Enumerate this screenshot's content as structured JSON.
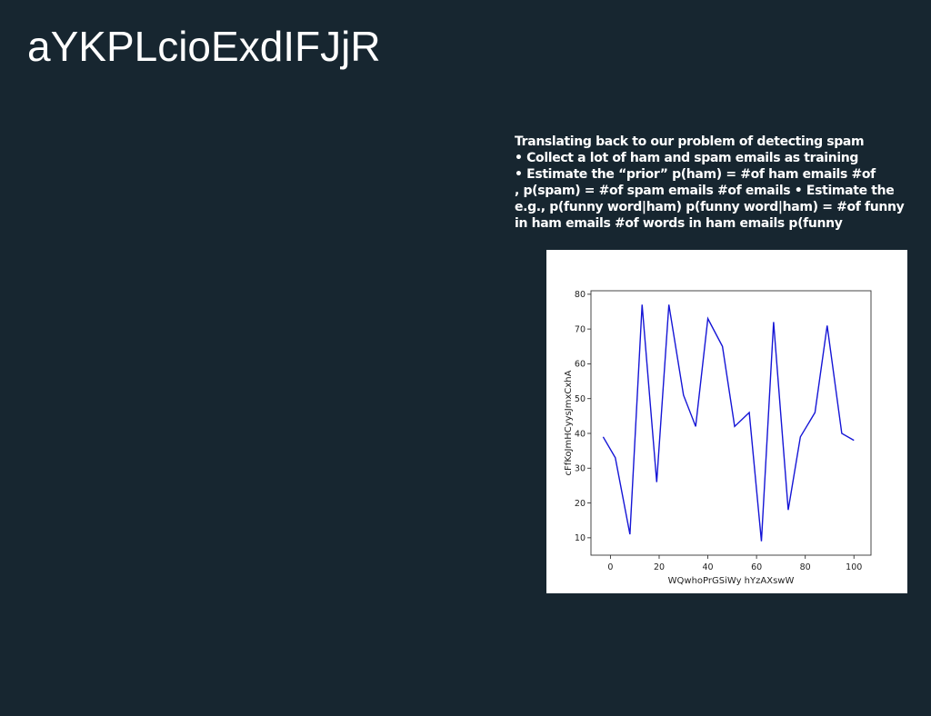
{
  "slide": {
    "title": "aYKPLcioExdIFJjR",
    "body_lines": [
      "Translating back to our problem of detecting spam",
      "• Collect a lot of ham and spam emails as training",
      "• Estimate the “prior” p(ham) = #of ham emails #of",
      ", p(spam) = #of spam emails #of emails • Estimate the",
      "e.g., p(funny word|ham) p(funny word|ham) = #of funny",
      "in ham emails #of words in ham emails p(funny"
    ]
  },
  "chart_data": {
    "type": "line",
    "x": [
      -3,
      2,
      8,
      13,
      19,
      24,
      30,
      35,
      40,
      46,
      51,
      57,
      62,
      67,
      73,
      78,
      84,
      89,
      95,
      100
    ],
    "series": [
      {
        "values": [
          39,
          33,
          11,
          77,
          26,
          77,
          51,
          42,
          73,
          65,
          42,
          46,
          9,
          72,
          18,
          39,
          46,
          71,
          40,
          38
        ]
      }
    ],
    "xlabel": "WQwhoPrGSiWy hYzAXswW",
    "ylabel": "cFfKoJmHCyysJmxCxhA",
    "xlim": [
      -8,
      107
    ],
    "ylim": [
      5,
      81
    ],
    "xticks": [
      0,
      20,
      40,
      60,
      80,
      100
    ],
    "yticks": [
      10,
      20,
      30,
      40,
      50,
      60,
      70,
      80
    ],
    "line_color": "#1515d6",
    "grid": false,
    "legend": false
  }
}
